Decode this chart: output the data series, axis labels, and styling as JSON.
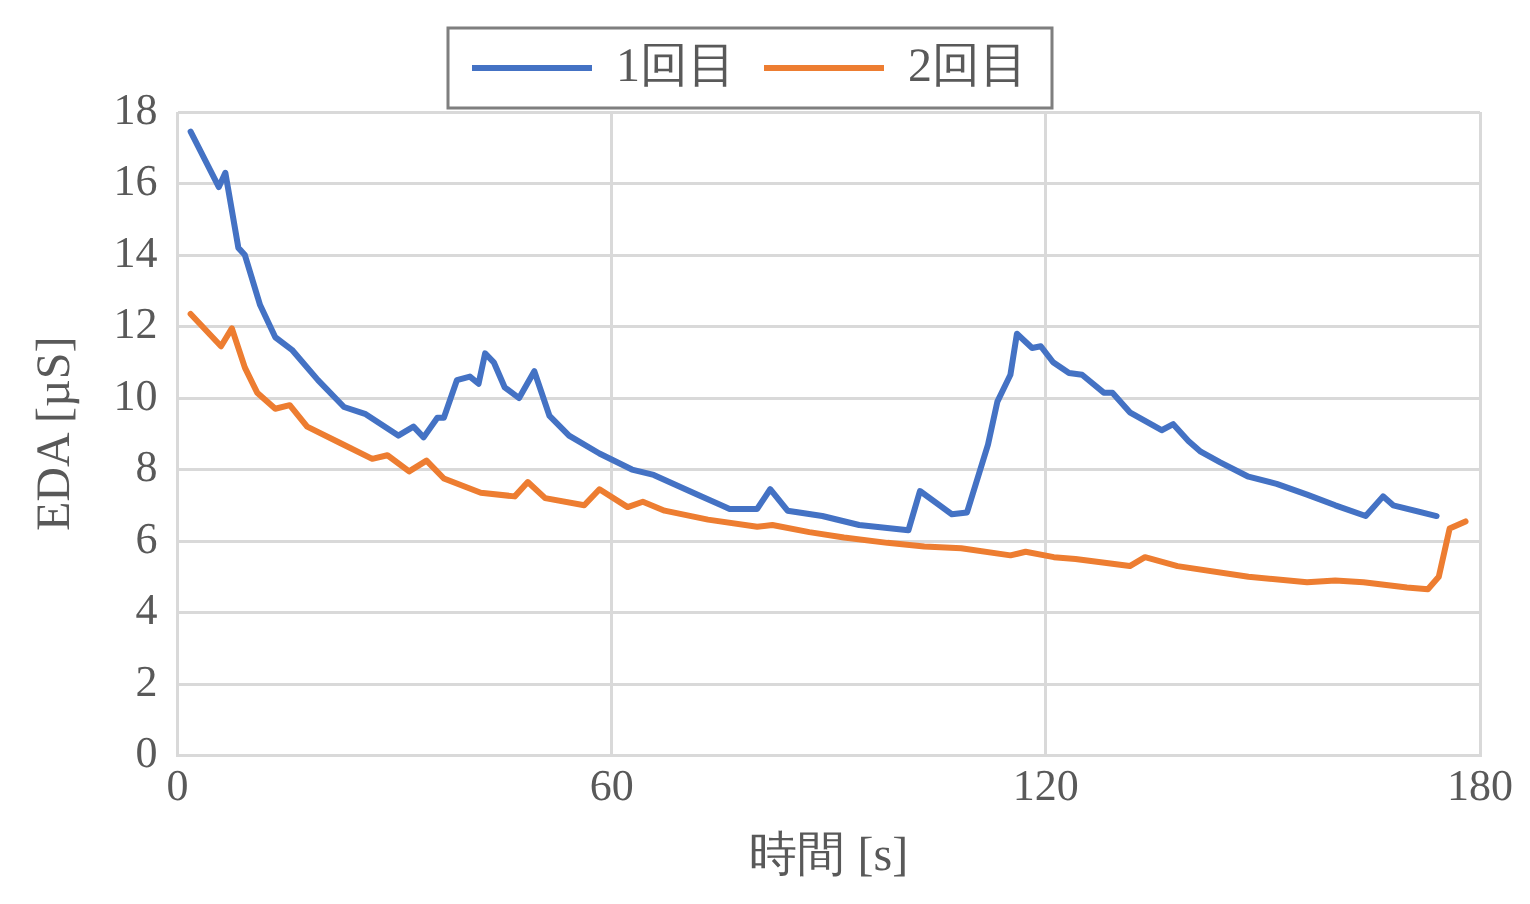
{
  "chart_data": {
    "type": "line",
    "xlabel": "時間 [s]",
    "ylabel": "EDA [µS]",
    "xlim": [
      0,
      180
    ],
    "xticks": [
      0,
      60,
      120,
      180
    ],
    "ylim": [
      0,
      18
    ],
    "yticks": [
      0,
      2,
      4,
      6,
      8,
      10,
      12,
      14,
      16,
      18
    ],
    "grid": true,
    "legend": "top",
    "marker": "none",
    "line_style": "solid",
    "series": [
      {
        "name": "1回目",
        "color": "#4472c4",
        "x": [
          1.8,
          5.7,
          6.6,
          8.4,
          9.3,
          11.4,
          13.5,
          15.8,
          19.4,
          23,
          26,
          30.5,
          32.6,
          34,
          35.9,
          36.8,
          38.6,
          40.4,
          41.6,
          42.5,
          43.7,
          45.2,
          47.2,
          49.3,
          51.4,
          54.1,
          58.3,
          62.8,
          65.8,
          71.8,
          76.3,
          80.1,
          81.9,
          84.3,
          89.1,
          94.2,
          101,
          102.6,
          107,
          109.1,
          112,
          113.3,
          115.1,
          116,
          118.1,
          119.3,
          121,
          123.2,
          125,
          128,
          129.2,
          131.6,
          136,
          137.6,
          139.7,
          141.4,
          144.1,
          148,
          151.9,
          156.1,
          160,
          164.2,
          166.6,
          168,
          174
        ],
        "values": [
          17.45,
          15.9,
          16.3,
          14.2,
          14.0,
          12.6,
          11.7,
          11.35,
          10.5,
          9.75,
          9.55,
          8.95,
          9.2,
          8.9,
          9.45,
          9.45,
          10.5,
          10.6,
          10.4,
          11.25,
          11.0,
          10.3,
          10.0,
          10.75,
          9.5,
          8.95,
          8.45,
          8.0,
          7.85,
          7.3,
          6.9,
          6.9,
          7.45,
          6.85,
          6.7,
          6.45,
          6.3,
          7.4,
          6.75,
          6.8,
          8.7,
          9.9,
          10.65,
          11.8,
          11.4,
          11.45,
          11.0,
          10.7,
          10.65,
          10.15,
          10.15,
          9.6,
          9.1,
          9.27,
          8.8,
          8.5,
          8.2,
          7.8,
          7.6,
          7.3,
          7.0,
          6.7,
          7.25,
          7.0,
          6.7
        ]
      },
      {
        "name": "2回目",
        "color": "#ed7d31",
        "x": [
          1.8,
          6,
          7.5,
          9.3,
          11,
          13.5,
          15.5,
          17.9,
          22.4,
          26.9,
          29,
          32,
          34.4,
          36.8,
          41.9,
          46.6,
          48.4,
          50.8,
          56.2,
          58.3,
          62.2,
          64.3,
          67.3,
          73.3,
          80.1,
          82.2,
          87.3,
          92.1,
          98.1,
          103.2,
          108.3,
          115.1,
          117.2,
          121.1,
          124.1,
          131.6,
          133.7,
          138.2,
          148,
          156.1,
          160,
          163.9,
          169.9,
          172.8,
          174.3,
          175.8,
          178
        ],
        "values": [
          12.35,
          11.45,
          11.95,
          10.85,
          10.15,
          9.7,
          9.8,
          9.2,
          8.75,
          8.3,
          8.4,
          7.95,
          8.25,
          7.75,
          7.35,
          7.25,
          7.65,
          7.2,
          7.0,
          7.45,
          6.95,
          7.1,
          6.85,
          6.6,
          6.4,
          6.45,
          6.25,
          6.1,
          5.95,
          5.85,
          5.8,
          5.6,
          5.7,
          5.55,
          5.5,
          5.3,
          5.55,
          5.3,
          5.0,
          4.85,
          4.9,
          4.85,
          4.7,
          4.65,
          5.0,
          6.35,
          6.55
        ]
      }
    ]
  }
}
